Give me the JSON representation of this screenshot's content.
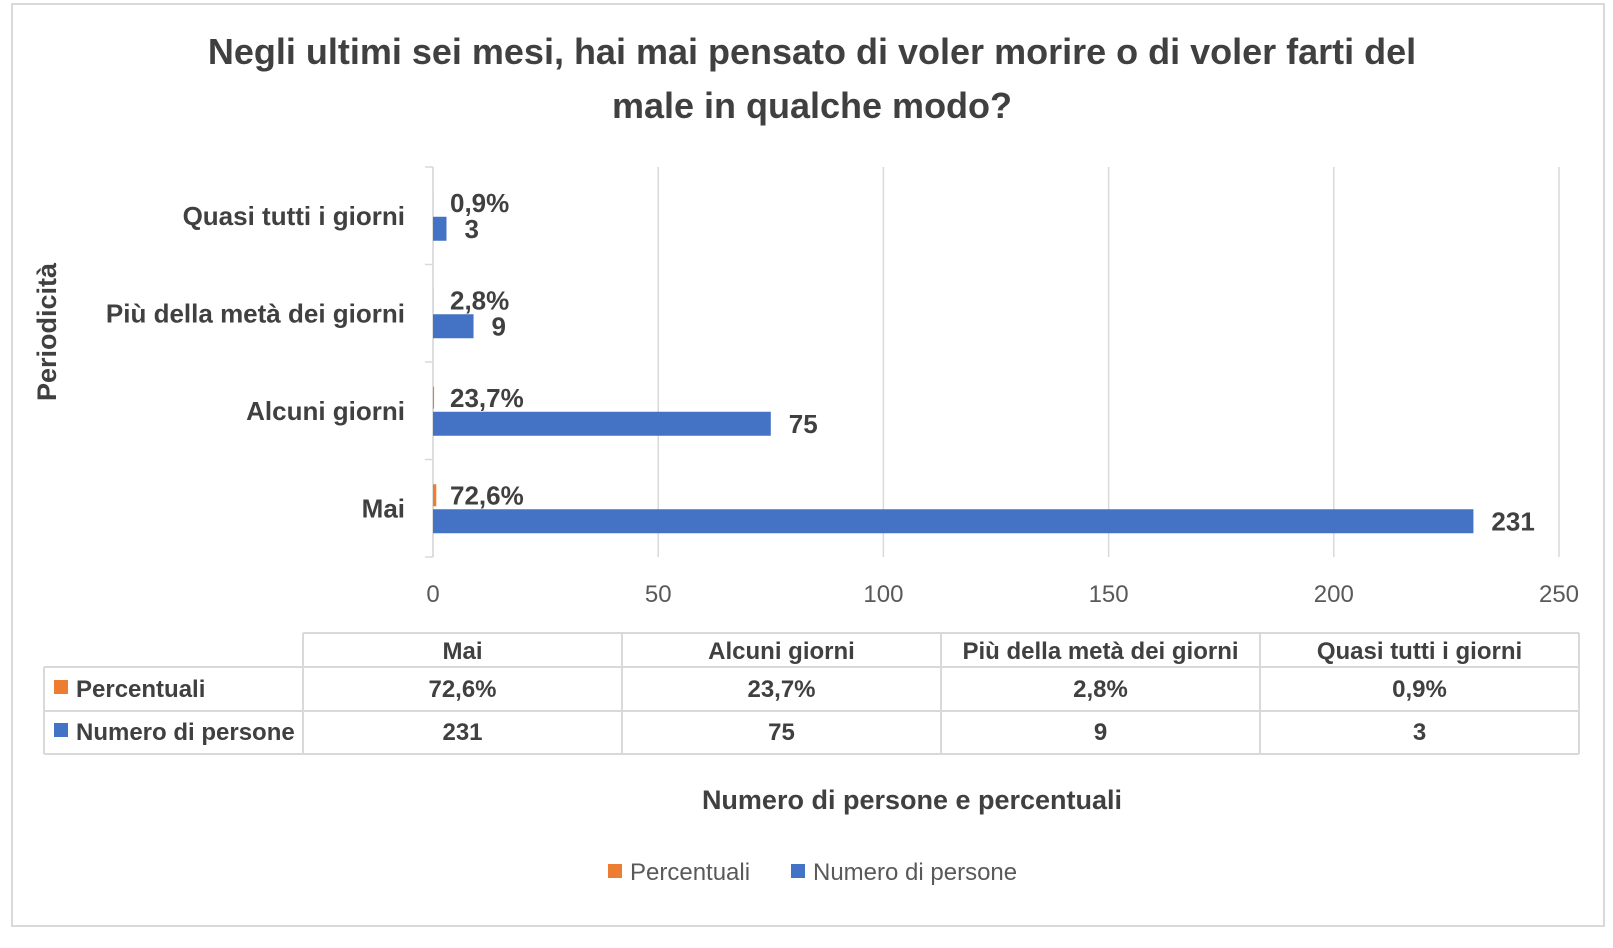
{
  "chart_data": {
    "type": "bar",
    "orientation": "horizontal",
    "title_line1": "Negli ultimi sei mesi, hai mai pensato di voler morire o di voler farti del",
    "title_line2": "male in qualche modo?",
    "ylabel": "Periodicità",
    "xlabel": "Numero di persone e percentuali",
    "categories": [
      "Mai",
      "Alcuni giorni",
      "Più della metà dei giorni",
      "Quasi tutti i giorni"
    ],
    "series": [
      {
        "name": "Percentuali",
        "color": "#ED7D31",
        "values": [
          72.6,
          23.7,
          2.8,
          0.9
        ],
        "labels": [
          "72,6%",
          "23,7%",
          "2,8%",
          "0,9%"
        ]
      },
      {
        "name": "Numero di persone",
        "color": "#4472C4",
        "values": [
          231,
          75,
          9,
          3
        ],
        "labels": [
          "231",
          "75",
          "9",
          "3"
        ]
      }
    ],
    "xlim": [
      0,
      250
    ],
    "x_ticks": [
      0,
      50,
      100,
      150,
      200,
      250
    ],
    "grid": true,
    "legend_position": "bottom",
    "data_table": true
  }
}
